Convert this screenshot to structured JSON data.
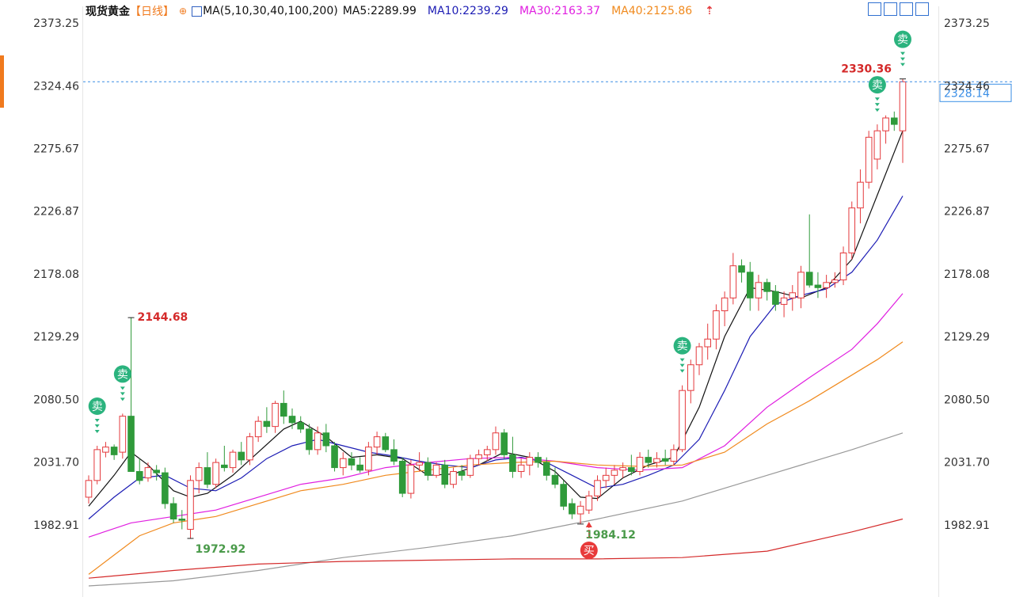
{
  "chart_data": {
    "type": "candlestick",
    "title": "现货黄金",
    "period": "【日线】",
    "ma_label": "MA(5,10,30,40,100,200)",
    "up_color": "#e4393c",
    "down_color": "#2f9a3a",
    "ylim": [
      1932.9,
      2385.6
    ],
    "yticks": [
      2373.25,
      2324.46,
      2275.67,
      2226.87,
      2178.08,
      2129.29,
      {
        "value": 2080.5,
        "label": "2080.50"
      },
      {
        "value": 2031.7,
        "label": "2031.70"
      },
      1982.91
    ],
    "open": [
      2005,
      2018,
      2040,
      2044,
      2040,
      2068,
      2025,
      2020,
      2026,
      2024,
      2000,
      1988,
      1980,
      2018,
      2028,
      2015,
      2030,
      2028,
      2040,
      2034,
      2052,
      2064,
      2060,
      2078,
      2068,
      2063,
      2058,
      2042,
      2055,
      2045,
      2028,
      2035,
      2030,
      2026,
      2044,
      2052,
      2042,
      2033,
      2008,
      2030,
      2032,
      2022,
      2030,
      2015,
      2025,
      2022,
      2035,
      2038,
      2042,
      2055,
      2038,
      2025,
      2030,
      2036,
      2032,
      2022,
      2015,
      2000,
      1992,
      1995,
      2006,
      2018,
      2022,
      2026,
      2028,
      2025,
      2036,
      2032,
      2035,
      2033,
      2042,
      2088,
      2108,
      2122,
      2128,
      2150,
      2160,
      2185,
      2180,
      2160,
      2172,
      2165,
      2155,
      2160,
      2160,
      2180,
      2170,
      2168,
      2172,
      2174,
      2195,
      2230,
      2250,
      2268,
      2290,
      2300,
      2290
    ],
    "high": [
      2022,
      2045,
      2048,
      2046,
      2070,
      2144.68,
      2035,
      2032,
      2030,
      2028,
      2005,
      1995,
      2022,
      2032,
      2040,
      2035,
      2045,
      2042,
      2048,
      2055,
      2068,
      2075,
      2080,
      2088,
      2074,
      2068,
      2062,
      2060,
      2062,
      2048,
      2040,
      2040,
      2036,
      2048,
      2056,
      2055,
      2050,
      2036,
      2034,
      2040,
      2036,
      2032,
      2034,
      2028,
      2030,
      2038,
      2042,
      2045,
      2060,
      2058,
      2052,
      2035,
      2040,
      2040,
      2036,
      2028,
      2018,
      2004,
      2002,
      2010,
      2022,
      2028,
      2030,
      2032,
      2038,
      2040,
      2042,
      2040,
      2042,
      2046,
      2092,
      2112,
      2125,
      2140,
      2155,
      2165,
      2195,
      2190,
      2188,
      2178,
      2175,
      2170,
      2165,
      2170,
      2185,
      2225,
      2180,
      2178,
      2180,
      2200,
      2235,
      2260,
      2290,
      2295,
      2302,
      2305,
      2330.36
    ],
    "low": [
      2000,
      2015,
      2036,
      2034,
      2035,
      2028,
      2015,
      2017,
      2018,
      1996,
      1985,
      1980,
      1972.92,
      2008,
      2012,
      2012,
      2025,
      2024,
      2030,
      2030,
      2048,
      2055,
      2055,
      2062,
      2058,
      2055,
      2038,
      2038,
      2040,
      2025,
      2022,
      2026,
      2024,
      2022,
      2038,
      2040,
      2030,
      2005,
      2004,
      2025,
      2018,
      2020,
      2012,
      2012,
      2018,
      2020,
      2030,
      2033,
      2038,
      2035,
      2020,
      2020,
      2022,
      2028,
      2018,
      2012,
      1995,
      1988,
      1984.12,
      1992,
      2002,
      2012,
      2015,
      2020,
      2022,
      2022,
      2028,
      2028,
      2030,
      2030,
      2040,
      2078,
      2100,
      2112,
      2120,
      2138,
      2155,
      2172,
      2150,
      2150,
      2158,
      2150,
      2145,
      2150,
      2152,
      2168,
      2160,
      2160,
      2168,
      2170,
      2190,
      2218,
      2245,
      2260,
      2280,
      2290,
      2265
    ],
    "close": [
      2018,
      2042,
      2044,
      2038,
      2068,
      2025,
      2018,
      2028,
      2024,
      2000,
      1988,
      1987,
      2018,
      2028,
      2015,
      2032,
      2028,
      2040,
      2034,
      2052,
      2064,
      2060,
      2078,
      2068,
      2063,
      2058,
      2042,
      2055,
      2045,
      2028,
      2035,
      2030,
      2026,
      2044,
      2052,
      2042,
      2033,
      2008,
      2030,
      2032,
      2022,
      2030,
      2015,
      2025,
      2022,
      2035,
      2038,
      2042,
      2055,
      2038,
      2025,
      2030,
      2036,
      2032,
      2022,
      2015,
      1998,
      1992,
      1998,
      2006,
      2018,
      2022,
      2026,
      2028,
      2025,
      2036,
      2032,
      2035,
      2033,
      2042,
      2088,
      2108,
      2122,
      2128,
      2150,
      2160,
      2185,
      2180,
      2160,
      2172,
      2165,
      2155,
      2160,
      2164,
      2180,
      2170,
      2168,
      2172,
      2174,
      2195,
      2230,
      2250,
      2285,
      2290,
      2300,
      2295,
      2328.14
    ],
    "series": [
      {
        "name": "MA5:2289.99",
        "color": "#111111",
        "x": [
          0,
          3,
          5,
          7,
          10,
          12,
          14,
          17,
          20,
          23,
          25,
          28,
          31,
          34,
          37,
          40,
          43,
          46,
          49,
          52,
          55,
          58,
          60,
          63,
          66,
          69,
          72,
          75,
          78,
          81,
          84,
          87,
          90,
          93,
          96
        ],
        "values": [
          1998,
          2022,
          2040,
          2030,
          2010,
          2005,
          2008,
          2022,
          2040,
          2058,
          2064,
          2052,
          2036,
          2038,
          2035,
          2022,
          2023,
          2030,
          2040,
          2036,
          2025,
          2005,
          2004,
          2020,
          2030,
          2036,
          2075,
          2130,
          2168,
          2165,
          2160,
          2168,
          2190,
          2240,
          2289.99
        ]
      },
      {
        "name": "MA10:2239.29",
        "color": "#1c1cb4",
        "x": [
          0,
          3,
          6,
          9,
          12,
          15,
          18,
          21,
          24,
          27,
          30,
          33,
          36,
          39,
          42,
          45,
          48,
          51,
          54,
          57,
          60,
          63,
          66,
          69,
          72,
          75,
          78,
          81,
          84,
          87,
          90,
          93,
          96
        ],
        "values": [
          1988,
          2005,
          2020,
          2022,
          2012,
          2010,
          2020,
          2035,
          2045,
          2050,
          2045,
          2040,
          2037,
          2033,
          2030,
          2028,
          2034,
          2036,
          2032,
          2022,
          2012,
          2015,
          2022,
          2030,
          2050,
          2088,
          2130,
          2155,
          2162,
          2167,
          2180,
          2205,
          2239.29
        ]
      },
      {
        "name": "MA30:2163.37",
        "color": "#e01ee0",
        "x": [
          0,
          5,
          10,
          15,
          20,
          25,
          30,
          35,
          40,
          45,
          50,
          55,
          60,
          65,
          70,
          75,
          80,
          85,
          90,
          93,
          96
        ],
        "values": [
          1974,
          1985,
          1990,
          1995,
          2005,
          2015,
          2020,
          2028,
          2032,
          2035,
          2036,
          2033,
          2028,
          2026,
          2028,
          2045,
          2075,
          2098,
          2120,
          2140,
          2163.37
        ]
      },
      {
        "name": "MA40:2125.86",
        "color": "#f08a1e",
        "x": [
          0,
          3,
          6,
          10,
          15,
          20,
          25,
          30,
          35,
          40,
          45,
          50,
          55,
          60,
          65,
          70,
          75,
          80,
          85,
          90,
          93,
          96
        ],
        "values": [
          1945,
          1960,
          1975,
          1985,
          1990,
          2000,
          2010,
          2015,
          2022,
          2026,
          2030,
          2032,
          2033,
          2030,
          2029,
          2030,
          2040,
          2062,
          2080,
          2100,
          2112,
          2125.86
        ]
      },
      {
        "color": "#999999",
        "x": [
          0,
          10,
          20,
          30,
          40,
          50,
          60,
          70,
          80,
          90,
          96
        ],
        "values": [
          1936,
          1940,
          1948,
          1958,
          1966,
          1975,
          1988,
          2002,
          2022,
          2042,
          2055
        ]
      },
      {
        "color": "#d42a2a",
        "x": [
          0,
          10,
          20,
          30,
          40,
          50,
          60,
          70,
          80,
          90,
          96
        ],
        "values": [
          1942,
          1948,
          1953,
          1955,
          1956,
          1957,
          1957,
          1958,
          1963,
          1978,
          1988
        ]
      }
    ],
    "signals": [
      {
        "index": 1,
        "label": "卖"
      },
      {
        "index": 4,
        "label": "卖"
      },
      {
        "index": 70,
        "label": "卖"
      },
      {
        "index": 93,
        "label": "卖"
      },
      {
        "index": 96,
        "label": "卖"
      },
      {
        "index": 59,
        "label": "买"
      }
    ],
    "extremes": [
      {
        "index": 5,
        "at": "high"
      },
      {
        "index": 12,
        "at": "low"
      },
      {
        "index": 58,
        "at": "low"
      },
      {
        "index": 96,
        "at": "high"
      }
    ]
  }
}
